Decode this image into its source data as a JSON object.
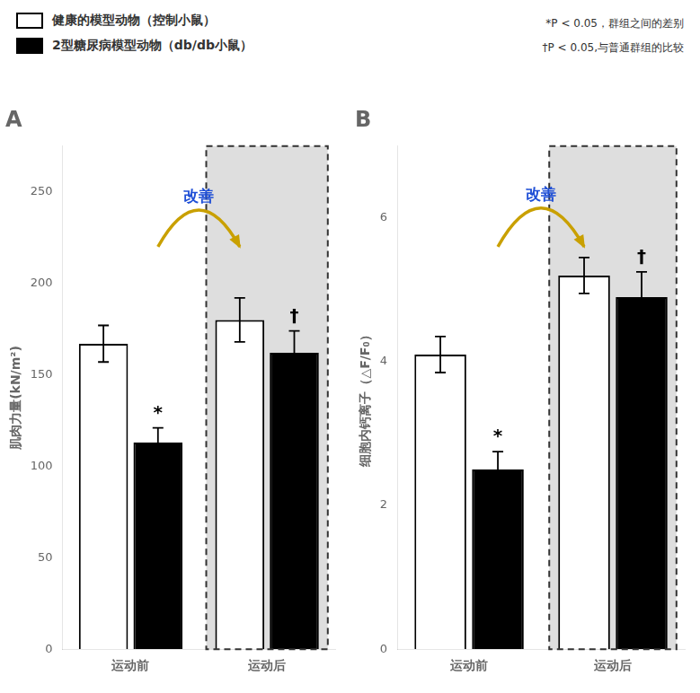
{
  "chart_data": [
    {
      "type": "bar",
      "title": "A",
      "ylabel": "肌肉力量(kN/m²)",
      "categories": [
        "运动前",
        "运动后"
      ],
      "series": [
        {
          "name": "健康的模型动物（控制小鼠）",
          "color": "#ffffff",
          "values": [
            167,
            180
          ],
          "errors": [
            10,
            12
          ]
        },
        {
          "name": "2型糖尿病模型动物（db/db小鼠）",
          "color": "#000000",
          "values": [
            113,
            162
          ],
          "errors": [
            8,
            12
          ]
        }
      ],
      "ylim": [
        0,
        275
      ],
      "yticks": [
        0,
        50,
        100,
        150,
        200,
        250
      ],
      "grid": false,
      "legend": "top left",
      "annotations": [
        {
          "text": "*P < 0.05，群组之间的差别"
        },
        {
          "text": "†P < 0.05,与普通群组的比较"
        },
        {
          "highlight": "运动后"
        },
        {
          "text": "*",
          "series": 1,
          "category": "运动前"
        },
        {
          "text": "†",
          "series": 1,
          "category": "运动后"
        },
        {
          "text": "改善",
          "from": {
            "series": 1,
            "category": "运动前"
          },
          "to": {
            "series": 0,
            "category": "运动后"
          }
        }
      ]
    },
    {
      "type": "bar",
      "title": "B",
      "ylabel": "细胞内钙离子（△F/F₀）",
      "categories": [
        "运动前",
        "运动后"
      ],
      "series": [
        {
          "name": "健康的模型动物（控制小鼠）",
          "color": "#ffffff",
          "values": [
            4.1,
            5.2
          ],
          "errors": [
            0.25,
            0.25
          ]
        },
        {
          "name": "2型糖尿病模型动物（db/db小鼠）",
          "color": "#000000",
          "values": [
            2.5,
            4.9
          ],
          "errors": [
            0.25,
            0.35
          ]
        }
      ],
      "ylim": [
        0,
        7
      ],
      "yticks": [
        0,
        2,
        4,
        6
      ],
      "grid": false,
      "annotations": [
        {
          "highlight": "运动后"
        },
        {
          "text": "*",
          "series": 1,
          "category": "运动前"
        },
        {
          "text": "†",
          "series": 1,
          "category": "运动后"
        },
        {
          "text": "改善",
          "from": {
            "series": 1,
            "category": "运动前"
          },
          "to": {
            "series": 0,
            "category": "运动后"
          }
        }
      ]
    }
  ]
}
